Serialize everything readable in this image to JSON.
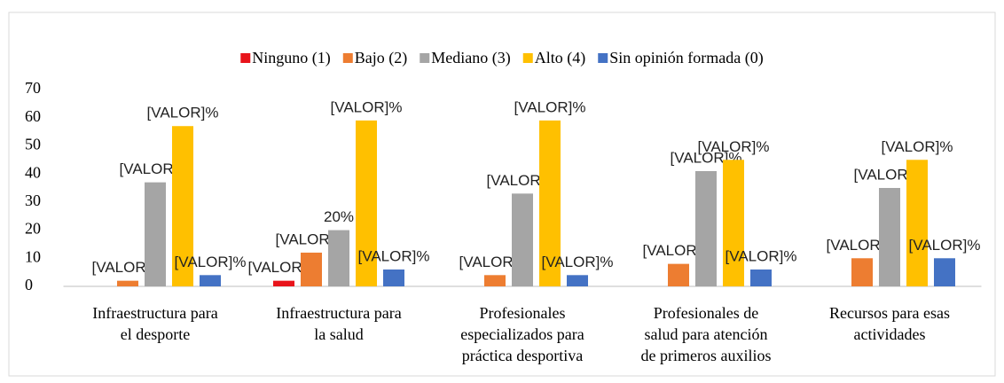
{
  "chart_data": {
    "type": "bar",
    "categories": [
      "Infraestructura para el desporte",
      "Infraestructura para la salud",
      "Profesionales especializados para práctica desportiva",
      "Profesionales de salud para atención de primeros auxilios",
      "Recursos para esas actividades"
    ],
    "series": [
      {
        "name": "Ninguno (1)",
        "color": "#e8141b",
        "values": [
          0,
          2,
          0,
          0,
          0
        ],
        "value_labels": [
          null,
          "[VALOR]%",
          null,
          null,
          null
        ]
      },
      {
        "name": "Bajo (2)",
        "color": "#ed7d31",
        "values": [
          2,
          12,
          4,
          8,
          10
        ],
        "value_labels": [
          "[VALOR]%",
          "[VALOR]%",
          "[VALOR]%",
          "[VALOR]%",
          "[VALOR]%"
        ]
      },
      {
        "name": "Mediano (3)",
        "color": "#a5a5a5",
        "values": [
          37,
          20,
          33,
          41,
          35
        ],
        "value_labels": [
          "[VALOR]%",
          "20%",
          "[VALOR]%",
          "[VALOR]%",
          "[VALOR]%"
        ]
      },
      {
        "name": "Alto (4)",
        "color": "#ffc000",
        "values": [
          57,
          59,
          59,
          45,
          45
        ],
        "value_labels": [
          "[VALOR]%",
          "[VALOR]%",
          "[VALOR]%",
          "[VALOR]%",
          "[VALOR]%"
        ]
      },
      {
        "name": "Sin opinión formada (0)",
        "color": "#4472c4",
        "values": [
          4,
          6,
          4,
          6,
          10
        ],
        "value_labels": [
          "[VALOR]%",
          "[VALOR]%",
          "[VALOR]%",
          "[VALOR]%",
          "[VALOR]%"
        ]
      }
    ],
    "ylim": [
      0,
      70
    ],
    "yticks": [
      0,
      10,
      20,
      30,
      40,
      50,
      60,
      70
    ],
    "grid": false,
    "legend": "top"
  }
}
